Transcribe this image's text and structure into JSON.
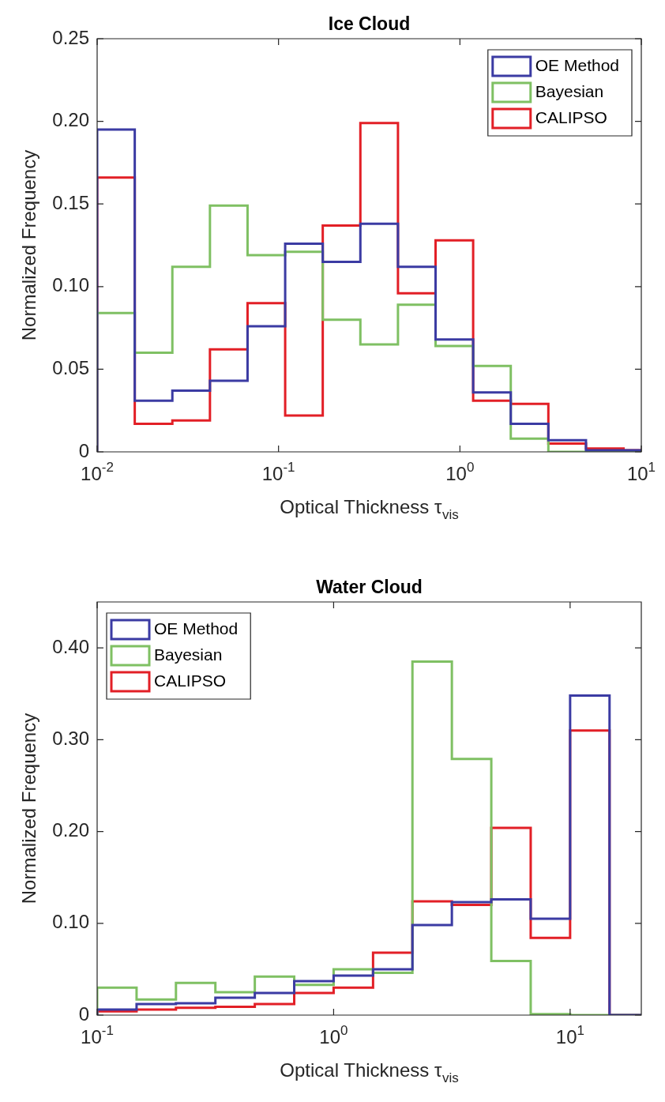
{
  "chart_data": [
    {
      "type": "histogram",
      "title": "Ice Cloud",
      "xlabel": "Optical Thickness τ$_{vis}$",
      "ylabel": "Normalized Frequency",
      "log": "x",
      "legend": "top right",
      "bins": [
        0.01,
        0.01612,
        0.02598,
        0.04187,
        0.06749,
        0.1088,
        0.1753,
        0.2826,
        0.4555,
        0.734,
        1.183,
        1.907,
        3.073,
        4.954,
        7.984,
        10
      ],
      "xlim": [
        0.01,
        10
      ],
      "xticks": [
        {
          "value": 0.01,
          "label": "10$^{-2}$"
        },
        {
          "value": 0.1,
          "label": "10$^{-1}$"
        },
        {
          "value": 1,
          "label": "10$^{0}$"
        },
        {
          "value": 10,
          "label": "10$^{1}$"
        }
      ],
      "ylim": [
        0,
        0.25
      ],
      "yticks": [
        {
          "value": 0,
          "label": "0"
        },
        {
          "value": 0.05,
          "label": "0.05"
        },
        {
          "value": 0.1,
          "label": "0.10"
        },
        {
          "value": 0.15,
          "label": "0.15"
        },
        {
          "value": 0.2,
          "label": "0.20"
        },
        {
          "value": 0.25,
          "label": "0.25"
        }
      ],
      "series": [
        {
          "name": "OE Method",
          "color": "#3b3ba3",
          "values": [
            0.195,
            0.031,
            0.037,
            0.043,
            0.076,
            0.126,
            0.115,
            0.138,
            0.112,
            0.068,
            0.036,
            0.017,
            0.007,
            0.001,
            0.001
          ]
        },
        {
          "name": "Bayesian",
          "color": "#7fc063",
          "values": [
            0.084,
            0.06,
            0.112,
            0.149,
            0.119,
            0.121,
            0.08,
            0.065,
            0.089,
            0.064,
            0.052,
            0.008,
            0,
            0,
            0
          ]
        },
        {
          "name": "CALIPSO",
          "color": "#e21f26",
          "values": [
            0.166,
            0.017,
            0.019,
            0.062,
            0.09,
            0.022,
            0.137,
            0.199,
            0.096,
            0.128,
            0.031,
            0.029,
            0.005,
            0.002,
            0.001
          ]
        }
      ]
    },
    {
      "type": "histogram",
      "title": "Water Cloud",
      "xlabel": "Optical Thickness τ$_{vis}$",
      "ylabel": "Normalized Frequency",
      "log": "x",
      "legend": "top left",
      "bins": [
        0.1,
        0.1468,
        0.2154,
        0.3162,
        0.4642,
        0.6813,
        1,
        1.468,
        2.154,
        3.162,
        4.642,
        6.813,
        10,
        14.68,
        20
      ],
      "xlim": [
        0.1,
        20
      ],
      "xticks": [
        {
          "value": 0.1,
          "label": "10$^{-1}$"
        },
        {
          "value": 1,
          "label": "10$^{0}$"
        },
        {
          "value": 10,
          "label": "10$^{1}$"
        }
      ],
      "ylim": [
        0,
        0.45
      ],
      "yticks": [
        {
          "value": 0,
          "label": "0"
        },
        {
          "value": 0.1,
          "label": "0.10"
        },
        {
          "value": 0.2,
          "label": "0.20"
        },
        {
          "value": 0.3,
          "label": "0.30"
        },
        {
          "value": 0.4,
          "label": "0.40"
        }
      ],
      "series": [
        {
          "name": "OE Method",
          "color": "#3b3ba3",
          "values": [
            0.006,
            0.012,
            0.013,
            0.019,
            0.024,
            0.037,
            0.043,
            0.05,
            0.098,
            0.123,
            0.126,
            0.105,
            0.348,
            0
          ]
        },
        {
          "name": "Bayesian",
          "color": "#7fc063",
          "values": [
            0.03,
            0.017,
            0.035,
            0.025,
            0.042,
            0.033,
            0.05,
            0.046,
            0.385,
            0.279,
            0.059,
            0.001,
            0,
            0
          ]
        },
        {
          "name": "CALIPSO",
          "color": "#e21f26",
          "values": [
            0.004,
            0.006,
            0.008,
            0.009,
            0.012,
            0.024,
            0.03,
            0.068,
            0.124,
            0.12,
            0.204,
            0.084,
            0.31,
            0
          ]
        }
      ]
    }
  ]
}
